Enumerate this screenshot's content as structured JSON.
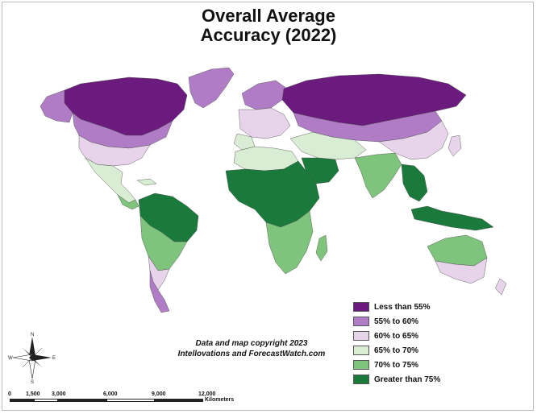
{
  "title_lines": [
    "Overall Average",
    "Accuracy (2022)"
  ],
  "legend": [
    {
      "label": "Less than 55%",
      "color": "#6a1b7d"
    },
    {
      "label": "55% to 60%",
      "color": "#b07cc6"
    },
    {
      "label": "60% to 65%",
      "color": "#e7d4eb"
    },
    {
      "label": "65% to 70%",
      "color": "#d8edd3"
    },
    {
      "label": "70% to 75%",
      "color": "#7fc47c"
    },
    {
      "label": "Greater than 75%",
      "color": "#1a7a3b"
    }
  ],
  "credit_lines": [
    "Data and map copyright 2023",
    "Intellovations and ForecastWatch.com"
  ],
  "scale": {
    "ticks": [
      "0",
      "1,500",
      "3,000",
      "6,000",
      "9,000",
      "12,000"
    ],
    "unit": "Kilometers"
  },
  "compass": {
    "n": "N",
    "s": "S",
    "e": "E",
    "w": "W"
  }
}
